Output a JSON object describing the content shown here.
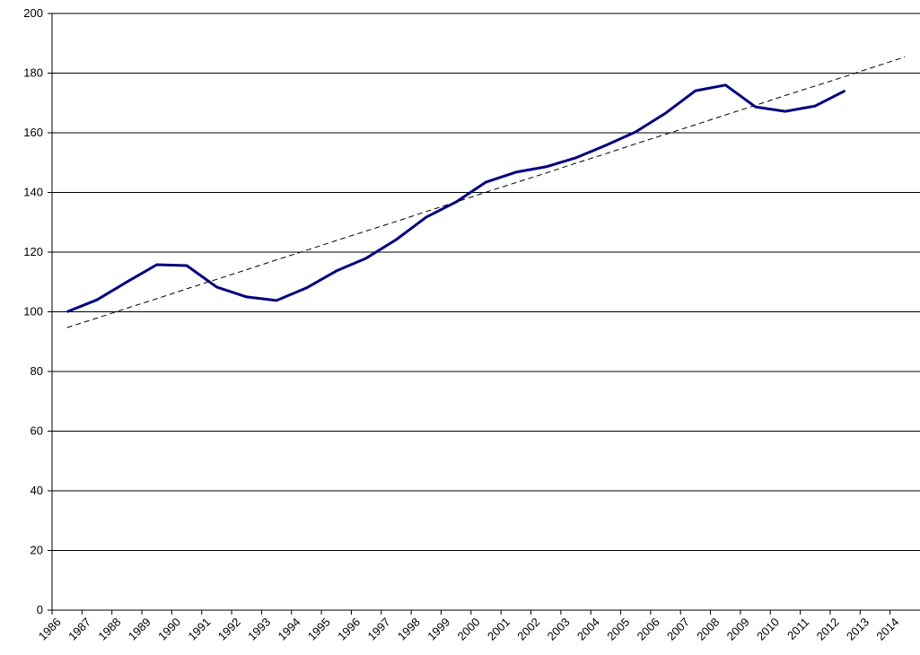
{
  "chart_data": {
    "type": "line",
    "categories": [
      "1986",
      "1987",
      "1988",
      "1989",
      "1990",
      "1991",
      "1992",
      "1993",
      "1994",
      "1995",
      "1996",
      "1997",
      "1998",
      "1999",
      "2000",
      "2001",
      "2002",
      "2003",
      "2004",
      "2005",
      "2006",
      "2007",
      "2008",
      "2009",
      "2010",
      "2011",
      "2012",
      "2013",
      "2014"
    ],
    "series": [
      {
        "color": "#000080",
        "values": [
          100,
          104,
          110,
          115.8,
          115.5,
          108.3,
          105,
          103.8,
          108,
          113.7,
          118,
          124.2,
          131.7,
          136.8,
          143.5,
          146.8,
          148.6,
          151.6,
          155.8,
          160.3,
          166.6,
          174.1,
          176,
          168.7,
          167.2,
          169,
          174.1,
          null,
          null
        ]
      },
      {
        "color": "#000000",
        "dashed": true,
        "values": [
          94.7,
          97.9,
          101.2,
          104.4,
          107.7,
          110.9,
          114.1,
          117.4,
          120.6,
          123.9,
          127.1,
          130.3,
          133.6,
          136.8,
          140.1,
          143.3,
          146.5,
          149.8,
          153,
          156.3,
          159.5,
          162.7,
          166,
          169.2,
          172.5,
          175.7,
          178.9,
          182.2,
          185.4
        ]
      }
    ],
    "ylim": [
      0,
      200
    ],
    "yticks": [
      0,
      20,
      40,
      60,
      80,
      100,
      120,
      140,
      160,
      180,
      200
    ],
    "grid": true
  }
}
